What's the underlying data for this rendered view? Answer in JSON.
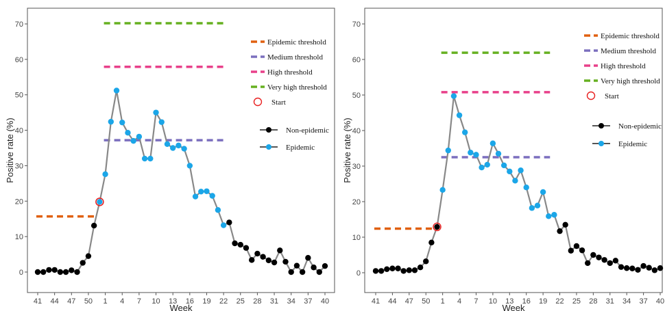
{
  "chart_data": [
    {
      "type": "line",
      "xlabel": "Week",
      "ylabel": "Positive rate (%)",
      "ylim": [
        -5,
        75
      ],
      "yticks": [
        0,
        10,
        20,
        30,
        40,
        50,
        60,
        70
      ],
      "xticks": [
        "41",
        "44",
        "47",
        "50",
        "1",
        "4",
        "7",
        "10",
        "13",
        "16",
        "19",
        "22",
        "25",
        "28",
        "31",
        "34",
        "37",
        "40"
      ],
      "weeks": [
        "41",
        "42",
        "43",
        "44",
        "45",
        "46",
        "47",
        "48",
        "49",
        "50",
        "51",
        "52",
        "1",
        "2",
        "3",
        "4",
        "5",
        "6",
        "7",
        "8",
        "9",
        "10",
        "11",
        "12",
        "13",
        "14",
        "15",
        "16",
        "17",
        "18",
        "19",
        "20",
        "21",
        "22",
        "23",
        "24",
        "25",
        "26",
        "27",
        "28",
        "29",
        "30",
        "31",
        "32",
        "33",
        "34",
        "35",
        "36",
        "37",
        "38",
        "39",
        "40"
      ],
      "values": [
        0,
        0,
        0.6,
        0.6,
        0,
        0,
        0.5,
        0,
        2.6,
        4.5,
        13.1,
        19.8,
        27.6,
        42.4,
        51.2,
        42.2,
        39.3,
        37.0,
        38.2,
        32.0,
        32.0,
        45.0,
        42.3,
        36.1,
        35.0,
        35.7,
        34.8,
        30.0,
        21.3,
        22.7,
        22.8,
        21.5,
        17.5,
        13.2,
        14.0,
        8.1,
        7.7,
        6.8,
        3.4,
        5.2,
        4.3,
        3.3,
        2.7,
        6.1,
        2.9,
        0,
        1.8,
        0,
        4.0,
        1.3,
        0,
        1.7
      ],
      "epidemic_start_index": 11,
      "epidemic_end_index": 33,
      "start_index": 11,
      "thresholds": [
        {
          "name": "Epidemic threshold",
          "value": 15.7,
          "x_from": "41",
          "x_to": "51",
          "color": "#e06010"
        },
        {
          "name": "Medium threshold",
          "value": 37.2,
          "x_from": "1",
          "x_to": "22",
          "color": "#7b6fbe"
        },
        {
          "name": "High threshold",
          "value": 57.9,
          "x_from": "1",
          "x_to": "22",
          "color": "#e8408a"
        },
        {
          "name": "Very high threshold",
          "value": 70.2,
          "x_from": "1",
          "x_to": "22",
          "color": "#66b020"
        }
      ],
      "legend": {
        "start": "Start",
        "non_epidemic": "Non-epidemic",
        "epidemic": "Epidemic"
      },
      "colors": {
        "line": "#888888",
        "non_epidemic": "#000000",
        "epidemic": "#1ba6e8",
        "start": "#e82020"
      }
    },
    {
      "type": "line",
      "xlabel": "Week",
      "ylabel": "Positive rate (%)",
      "ylim": [
        -5,
        75
      ],
      "yticks": [
        0,
        10,
        20,
        30,
        40,
        50,
        60,
        70
      ],
      "xticks": [
        "41",
        "44",
        "47",
        "50",
        "1",
        "4",
        "7",
        "10",
        "13",
        "16",
        "19",
        "22",
        "25",
        "28",
        "31",
        "34",
        "37",
        "40"
      ],
      "weeks": [
        "41",
        "42",
        "43",
        "44",
        "45",
        "46",
        "47",
        "48",
        "49",
        "50",
        "51",
        "52",
        "1",
        "2",
        "3",
        "4",
        "5",
        "6",
        "7",
        "8",
        "9",
        "10",
        "11",
        "12",
        "13",
        "14",
        "15",
        "16",
        "17",
        "18",
        "19",
        "20",
        "21",
        "22",
        "23",
        "24",
        "25",
        "26",
        "27",
        "28",
        "29",
        "30",
        "31",
        "32",
        "33",
        "34",
        "35",
        "36",
        "37",
        "38",
        "39",
        "40"
      ],
      "values": [
        0.5,
        0.5,
        1.0,
        1.2,
        1.2,
        0.5,
        0.7,
        0.7,
        1.5,
        3.2,
        8.5,
        12.9,
        23.3,
        34.4,
        49.7,
        44.3,
        39.5,
        33.8,
        33.2,
        29.6,
        30.4,
        36.4,
        33.5,
        30.2,
        28.5,
        25.9,
        28.8,
        24.0,
        18.2,
        18.9,
        22.7,
        15.9,
        16.3,
        11.7,
        13.5,
        6.2,
        7.5,
        6.3,
        2.7,
        5.0,
        4.3,
        3.6,
        2.7,
        3.4,
        1.6,
        1.3,
        1.2,
        0.8,
        1.9,
        1.4,
        0.7,
        1.3
      ],
      "epidemic_start_index": 12,
      "epidemic_end_index": 32,
      "start_index": 11,
      "thresholds": [
        {
          "name": "Epidemic threshold",
          "value": 12.4,
          "x_from": "41",
          "x_to": "52",
          "color": "#e06010"
        },
        {
          "name": "Medium threshold",
          "value": 32.5,
          "x_from": "1",
          "x_to": "20",
          "color": "#7b6fbe"
        },
        {
          "name": "High threshold",
          "value": 50.8,
          "x_from": "1",
          "x_to": "20",
          "color": "#e8408a"
        },
        {
          "name": "Very high threshold",
          "value": 61.9,
          "x_from": "1",
          "x_to": "20",
          "color": "#66b020"
        }
      ],
      "legend": {
        "start": "Start",
        "non_epidemic": "Non-epidemic",
        "epidemic": "Epidemic"
      },
      "colors": {
        "line": "#888888",
        "non_epidemic": "#000000",
        "epidemic": "#1ba6e8",
        "start": "#e82020"
      }
    }
  ]
}
